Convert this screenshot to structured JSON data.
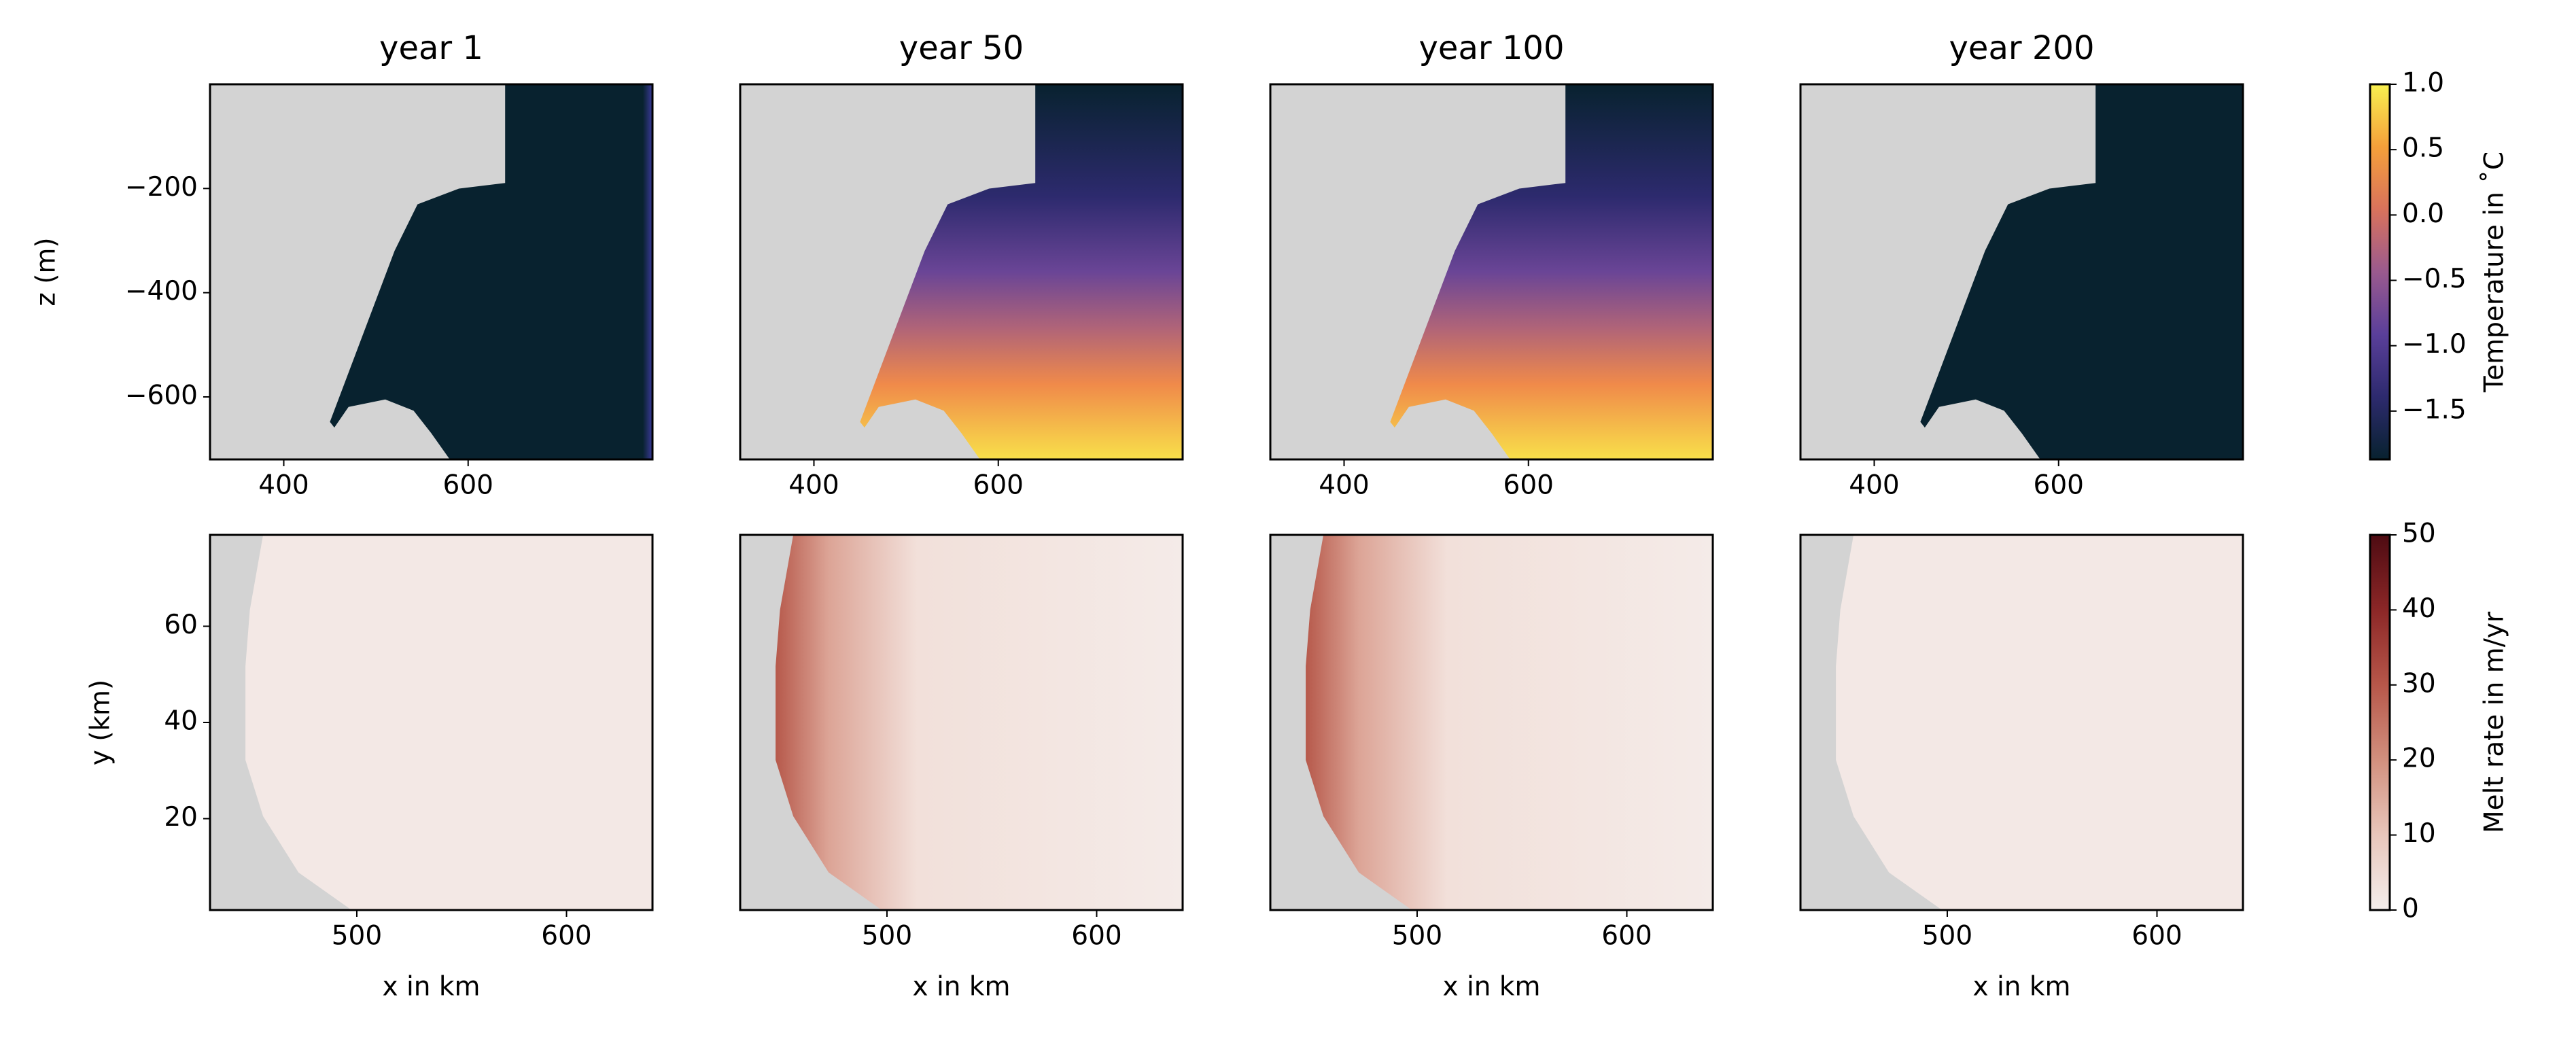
{
  "chart_data": [
    {
      "type": "heatmap",
      "title": "year 1",
      "ylabel": "z (m)",
      "xlim": [
        320,
        800
      ],
      "xticks": [
        400,
        600
      ],
      "ylim": [
        -720,
        0
      ],
      "yticks": [
        {
          "value": -200,
          "label": "−200"
        },
        {
          "value": -400,
          "label": "−400"
        },
        {
          "value": -600,
          "label": "−600"
        }
      ]
    },
    {
      "type": "heatmap",
      "title": "year 50",
      "xlim": [
        320,
        800
      ],
      "xticks": [
        400,
        600
      ],
      "ylim": [
        -720,
        0
      ]
    },
    {
      "type": "heatmap",
      "title": "year 100",
      "xlim": [
        320,
        800
      ],
      "xticks": [
        400,
        600
      ],
      "ylim": [
        -720,
        0
      ]
    },
    {
      "type": "heatmap",
      "title": "year 200",
      "xlim": [
        320,
        800
      ],
      "xticks": [
        400,
        600
      ],
      "ylim": [
        -720,
        0
      ]
    },
    {
      "type": "heatmap",
      "xlabel": "x in km",
      "ylabel": "y (km)",
      "xlim": [
        430,
        641
      ],
      "xticks": [
        500,
        600
      ],
      "ylim": [
        1,
        79
      ],
      "yticks": [
        20,
        40,
        60
      ]
    },
    {
      "type": "heatmap",
      "xlabel": "x in km",
      "xlim": [
        430,
        641
      ],
      "xticks": [
        500,
        600
      ],
      "ylim": [
        1,
        79
      ]
    },
    {
      "type": "heatmap",
      "xlabel": "x in km",
      "xlim": [
        430,
        641
      ],
      "xticks": [
        500,
        600
      ],
      "ylim": [
        1,
        79
      ]
    },
    {
      "type": "heatmap",
      "xlabel": "x in km",
      "xlim": [
        430,
        641
      ],
      "xticks": [
        500,
        600
      ],
      "ylim": [
        1,
        79
      ]
    },
    {
      "type": "colorbar",
      "label": "Temperature in ˚C",
      "ylim": [
        -1.87,
        1.0
      ],
      "yticks": [
        {
          "value": 1.0,
          "label": "1.0"
        },
        0.5,
        {
          "value": 0,
          "label": "0.0"
        },
        {
          "value": -0.5,
          "label": "−0.5"
        },
        {
          "value": -1.0,
          "label": "−1.0"
        },
        {
          "value": -1.5,
          "label": "−1.5"
        }
      ],
      "colors": [
        "#08222f",
        "#2d2a6e",
        "#5a3f9a",
        "#9a5a8e",
        "#d9725c",
        "#f5a03a",
        "#f8f050"
      ]
    },
    {
      "type": "colorbar",
      "label": "Melt rate in m/yr",
      "ylim": [
        0,
        50
      ],
      "yticks": [
        0,
        10,
        20,
        30,
        40,
        50
      ],
      "colors": [
        "#f4eeec",
        "#e8c6bb",
        "#d2907e",
        "#b7574a",
        "#8c2727",
        "#4e0b12"
      ]
    }
  ]
}
